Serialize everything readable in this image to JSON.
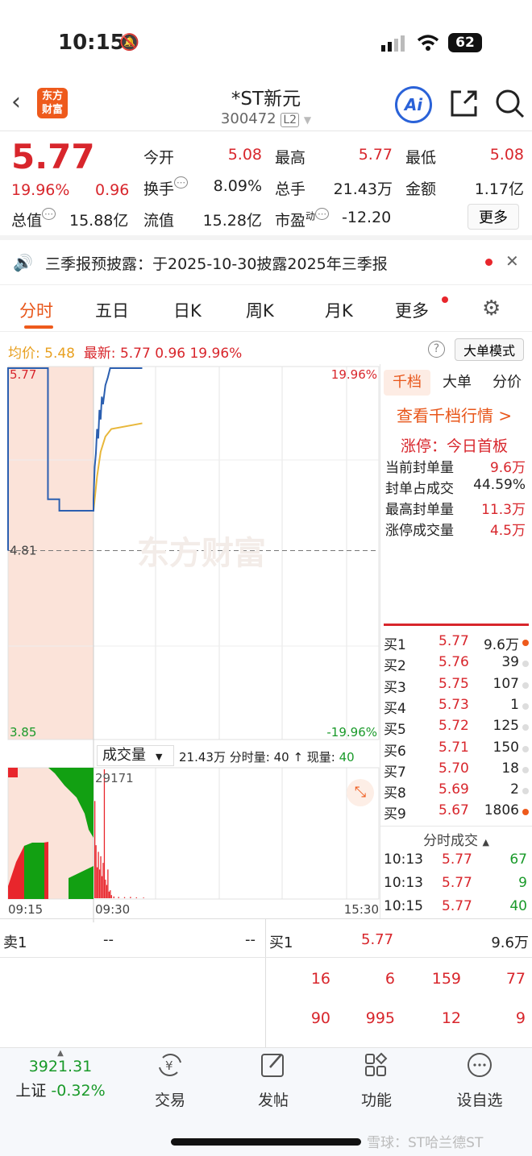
{
  "status_bar": {
    "time": "10:15",
    "battery": "62"
  },
  "header": {
    "logo": "东方财富",
    "title": "*ST新元",
    "code": "300472",
    "level_badge": "L2",
    "ai_label": "Ai"
  },
  "quote": {
    "price": "5.77",
    "change_pct": "19.96%",
    "change": "0.96",
    "fields": [
      {
        "label": "今开",
        "value": "5.08",
        "color": "red"
      },
      {
        "label": "最高",
        "value": "5.77",
        "color": "red"
      },
      {
        "label": "最低",
        "value": "5.08",
        "color": "red"
      },
      {
        "label": "换手",
        "value": "8.09%",
        "color": "black"
      },
      {
        "label": "总手",
        "value": "21.43万",
        "color": "black"
      },
      {
        "label": "金额",
        "value": "1.17亿",
        "color": "black"
      },
      {
        "label": "总值",
        "value": "15.88亿",
        "color": "black"
      },
      {
        "label": "流值",
        "value": "15.28亿",
        "color": "black"
      },
      {
        "label": "市盈",
        "sup": "动",
        "value": "-12.20",
        "color": "black"
      }
    ],
    "more_button": "更多"
  },
  "notice": {
    "text": "三季报预披露：于2025-10-30披露2025年三季报"
  },
  "tabs": [
    "分时",
    "五日",
    "日K",
    "周K",
    "月K",
    "更多"
  ],
  "info_line": {
    "avg_label": "均价:",
    "avg": "5.48",
    "latest_label": "最新:",
    "latest": "5.77",
    "change": "0.96",
    "pct": "19.96%",
    "mode_button": "大单模式"
  },
  "chart_data": {
    "type": "line",
    "watermark": "东方财富",
    "y_ticks_left": [
      "5.77",
      "4.81",
      "3.85"
    ],
    "y_ticks_right": [
      "19.96%",
      "-19.96%"
    ],
    "ylim": [
      3.85,
      5.77
    ],
    "prev_close": 4.81,
    "x_ticks": [
      "09:15",
      "09:30",
      "15:30"
    ],
    "price_series": [
      [
        "09:15",
        4.81
      ],
      [
        "09:15",
        5.77
      ],
      [
        "09:22",
        5.77
      ],
      [
        "09:22",
        5.08
      ],
      [
        "09:24",
        5.08
      ],
      [
        "09:24",
        5.02
      ],
      [
        "09:30",
        5.02
      ],
      [
        "09:30",
        5.08
      ],
      [
        "09:31",
        5.25
      ],
      [
        "09:32",
        5.32
      ],
      [
        "09:33",
        5.45
      ],
      [
        "09:34",
        5.4
      ],
      [
        "09:35",
        5.55
      ],
      [
        "09:36",
        5.5
      ],
      [
        "09:37",
        5.62
      ],
      [
        "09:38",
        5.58
      ],
      [
        "09:40",
        5.68
      ],
      [
        "09:42",
        5.72
      ],
      [
        "09:44",
        5.77
      ],
      [
        "10:11",
        5.77
      ]
    ],
    "avg_series": [
      [
        "09:30",
        5.02
      ],
      [
        "09:33",
        5.2
      ],
      [
        "09:36",
        5.33
      ],
      [
        "09:40",
        5.41
      ],
      [
        "09:45",
        5.45
      ],
      [
        "10:11",
        5.48
      ]
    ],
    "colors": {
      "price": "#2b5fb0",
      "avg": "#e8b73a",
      "up": "#e8262c",
      "down": "#12a012",
      "premarket_bg": "#fbe3d9"
    },
    "volume": {
      "selector": "成交量",
      "total": "21.43万",
      "minute_label": "分时量:",
      "minute_value": "40",
      "current_label": "现量:",
      "current_value": "40",
      "max_label": "29171",
      "max": 29171,
      "bars": [
        [
          "09:30",
          22000
        ],
        [
          "09:31",
          12000
        ],
        [
          "09:32",
          7000
        ],
        [
          "09:33",
          10500
        ],
        [
          "09:34",
          6500
        ],
        [
          "09:35",
          9500
        ],
        [
          "09:36",
          5000
        ],
        [
          "09:37",
          8000
        ],
        [
          "09:38",
          29171
        ],
        [
          "09:39",
          4200
        ],
        [
          "09:40",
          3000
        ],
        [
          "09:41",
          6500
        ],
        [
          "09:42",
          1500
        ],
        [
          "09:43",
          1800
        ],
        [
          "09:44",
          700
        ],
        [
          "09:46",
          400
        ],
        [
          "09:50",
          300
        ],
        [
          "09:55",
          250
        ],
        [
          "10:00",
          300
        ],
        [
          "10:05",
          200
        ],
        [
          "10:11",
          150
        ]
      ]
    }
  },
  "side_tabs": [
    "千档",
    "大单",
    "分价"
  ],
  "side": {
    "link": "查看千档行情 >",
    "limit_title": "涨停：今日首板",
    "stats": [
      {
        "label": "当前封单量",
        "value": "9.6万",
        "red": true
      },
      {
        "label": "封单占成交",
        "value": "44.59%",
        "red": false
      },
      {
        "label": "最高封单量",
        "value": "11.3万",
        "red": true
      },
      {
        "label": "涨停成交量",
        "value": "4.5万",
        "red": true
      }
    ],
    "bids": [
      [
        "买1",
        "5.77",
        "9.6万",
        true
      ],
      [
        "买2",
        "5.76",
        "39",
        false
      ],
      [
        "买3",
        "5.75",
        "107",
        false
      ],
      [
        "买4",
        "5.73",
        "1",
        false
      ],
      [
        "买5",
        "5.72",
        "125",
        false
      ],
      [
        "买6",
        "5.71",
        "150",
        false
      ],
      [
        "买7",
        "5.70",
        "18",
        false
      ],
      [
        "买8",
        "5.69",
        "2",
        false
      ],
      [
        "买9",
        "5.67",
        "1806",
        true
      ]
    ],
    "ticks_title": "分时成交",
    "ticks": [
      [
        "10:13",
        "5.77",
        "67"
      ],
      [
        "10:13",
        "5.77",
        "9"
      ],
      [
        "10:15",
        "5.77",
        "40"
      ]
    ]
  },
  "book": {
    "sell_label": "卖1",
    "sell_price": "--",
    "sell_vol": "--",
    "buy_label": "买1",
    "buy_price": "5.77",
    "buy_vol": "9.6万",
    "queue": [
      [
        "16",
        "6",
        "159",
        "77"
      ],
      [
        "90",
        "995",
        "12",
        "9"
      ]
    ]
  },
  "bottom_nav": {
    "index_value": "3921.31",
    "index_name": "上证",
    "index_change": "-0.32%",
    "items": [
      {
        "label": "交易",
        "icon": "trade-icon"
      },
      {
        "label": "发帖",
        "icon": "post-icon"
      },
      {
        "label": "功能",
        "icon": "apps-icon"
      },
      {
        "label": "设自选",
        "icon": "more-icon"
      }
    ]
  },
  "watermark": "雪球：ST哈兰德ST"
}
